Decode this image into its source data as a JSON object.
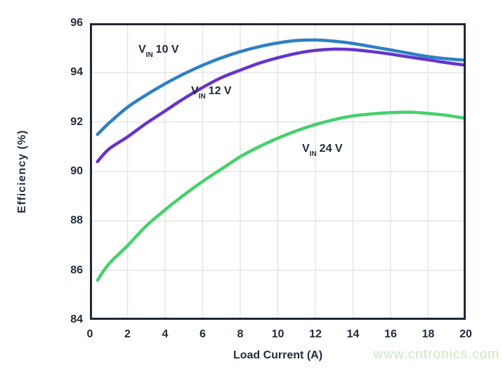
{
  "page": {
    "background": "#ffffff",
    "watermark": {
      "text": "www.cntronics.com",
      "color": "#c8e8bd"
    }
  },
  "chart_data": {
    "type": "line",
    "title": "",
    "xlabel": "Load Current (A)",
    "ylabel": "Efficiency (%)",
    "xlim": [
      0,
      20
    ],
    "ylim": [
      84,
      96
    ],
    "xticks": [
      0,
      2,
      4,
      6,
      8,
      10,
      12,
      14,
      16,
      18,
      20
    ],
    "yticks": [
      84,
      86,
      88,
      90,
      92,
      94,
      96
    ],
    "grid": true,
    "legend": "inline-labels",
    "colors": {
      "border": "#1f2837",
      "grid": "#e3e6e9",
      "text": "#222c3e"
    },
    "series": [
      {
        "name": "VIN 10 V",
        "label": {
          "base": "V",
          "sub": "IN",
          "rest": "10 V"
        },
        "color": "#2e80c6",
        "points": [
          [
            0.4,
            91.5
          ],
          [
            1,
            91.95
          ],
          [
            2,
            92.6
          ],
          [
            3,
            93.1
          ],
          [
            4,
            93.55
          ],
          [
            5,
            93.95
          ],
          [
            6,
            94.3
          ],
          [
            7,
            94.6
          ],
          [
            8,
            94.85
          ],
          [
            9,
            95.05
          ],
          [
            10,
            95.2
          ],
          [
            11,
            95.3
          ],
          [
            12,
            95.32
          ],
          [
            13,
            95.27
          ],
          [
            14,
            95.18
          ],
          [
            15,
            95.05
          ],
          [
            16,
            94.92
          ],
          [
            17,
            94.78
          ],
          [
            18,
            94.65
          ],
          [
            19,
            94.56
          ],
          [
            20,
            94.5
          ]
        ]
      },
      {
        "name": "VIN 12 V",
        "label": {
          "base": "V",
          "sub": "IN",
          "rest": "12 V"
        },
        "color": "#6634cc",
        "points": [
          [
            0.4,
            90.4
          ],
          [
            1,
            90.9
          ],
          [
            2,
            91.4
          ],
          [
            3,
            91.95
          ],
          [
            4,
            92.45
          ],
          [
            5,
            92.95
          ],
          [
            6,
            93.4
          ],
          [
            7,
            93.8
          ],
          [
            8,
            94.1
          ],
          [
            9,
            94.38
          ],
          [
            10,
            94.6
          ],
          [
            11,
            94.78
          ],
          [
            12,
            94.9
          ],
          [
            13,
            94.95
          ],
          [
            14,
            94.93
          ],
          [
            15,
            94.85
          ],
          [
            16,
            94.75
          ],
          [
            17,
            94.63
          ],
          [
            18,
            94.52
          ],
          [
            19,
            94.4
          ],
          [
            20,
            94.3
          ]
        ]
      },
      {
        "name": "VIN 24 V",
        "label": {
          "base": "V",
          "sub": "IN",
          "rest": "24 V"
        },
        "color": "#45d06c",
        "points": [
          [
            0.4,
            85.6
          ],
          [
            1,
            86.25
          ],
          [
            2,
            87.0
          ],
          [
            3,
            87.8
          ],
          [
            4,
            88.45
          ],
          [
            5,
            89.05
          ],
          [
            6,
            89.6
          ],
          [
            7,
            90.1
          ],
          [
            8,
            90.6
          ],
          [
            9,
            91.0
          ],
          [
            10,
            91.35
          ],
          [
            11,
            91.65
          ],
          [
            12,
            91.9
          ],
          [
            13,
            92.1
          ],
          [
            14,
            92.25
          ],
          [
            15,
            92.33
          ],
          [
            16,
            92.38
          ],
          [
            17,
            92.4
          ],
          [
            18,
            92.35
          ],
          [
            19,
            92.27
          ],
          [
            20,
            92.15
          ]
        ]
      }
    ]
  }
}
